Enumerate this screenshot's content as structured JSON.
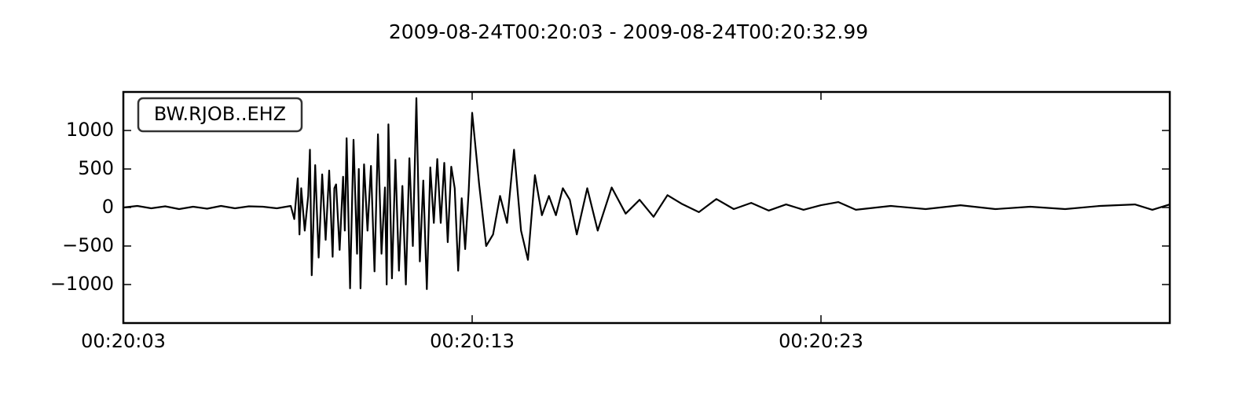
{
  "colors": {
    "background": "#ffffff",
    "trace": "#000000",
    "axes": "#000000",
    "label_box_border": "#333333"
  },
  "chart_data": {
    "type": "line",
    "title": "2009-08-24T00:20:03  -  2009-08-24T00:20:32.99",
    "xlabel": "",
    "ylabel": "",
    "x_unit": "seconds after 00:20:03",
    "xlim": [
      0,
      30
    ],
    "ylim": [
      -1500,
      1500
    ],
    "yticks": [
      1000,
      500,
      0,
      -500,
      -1000
    ],
    "ytick_labels": [
      "1000",
      "500",
      "0",
      "−500",
      "−1000"
    ],
    "xticks": [
      0,
      10,
      20
    ],
    "xtick_labels": [
      "00:20:03",
      "00:20:13",
      "00:20:23"
    ],
    "grid": false,
    "legend_position": "top-left",
    "series": [
      {
        "name": "BW.RJOB..EHZ",
        "color": "#000000",
        "x": [
          0,
          0.4,
          0.8,
          1.2,
          1.6,
          2.0,
          2.4,
          2.8,
          3.2,
          3.6,
          4.0,
          4.4,
          4.8,
          4.9,
          5.0,
          5.05,
          5.1,
          5.2,
          5.3,
          5.35,
          5.4,
          5.5,
          5.6,
          5.7,
          5.8,
          5.9,
          6.0,
          6.05,
          6.1,
          6.2,
          6.3,
          6.35,
          6.4,
          6.5,
          6.6,
          6.7,
          6.75,
          6.8,
          6.9,
          7.0,
          7.1,
          7.2,
          7.3,
          7.4,
          7.5,
          7.55,
          7.6,
          7.7,
          7.8,
          7.9,
          8.0,
          8.1,
          8.2,
          8.3,
          8.4,
          8.5,
          8.6,
          8.7,
          8.8,
          8.9,
          9.0,
          9.1,
          9.2,
          9.3,
          9.4,
          9.5,
          9.6,
          9.7,
          9.8,
          9.9,
          10.0,
          10.2,
          10.4,
          10.6,
          10.8,
          11.0,
          11.2,
          11.4,
          11.6,
          11.8,
          12.0,
          12.2,
          12.4,
          12.6,
          12.8,
          13.0,
          13.3,
          13.6,
          14.0,
          14.4,
          14.8,
          15.2,
          15.6,
          16.0,
          16.5,
          17.0,
          17.5,
          18.0,
          18.5,
          19.0,
          19.5,
          20.0,
          20.5,
          21.0,
          22.0,
          23.0,
          24.0,
          25.0,
          26.0,
          27.0,
          28.0,
          29.0,
          29.5,
          30.0
        ],
        "y": [
          0,
          20,
          -10,
          15,
          -20,
          10,
          -15,
          20,
          -10,
          15,
          10,
          -10,
          20,
          -150,
          380,
          -350,
          250,
          -300,
          150,
          750,
          -880,
          550,
          -650,
          430,
          -420,
          480,
          -640,
          250,
          300,
          -550,
          400,
          -300,
          900,
          -1050,
          880,
          -600,
          500,
          -1050,
          560,
          -300,
          540,
          -830,
          950,
          -600,
          260,
          -1000,
          1080,
          -920,
          620,
          -820,
          280,
          -1000,
          640,
          -500,
          1420,
          -700,
          350,
          -1060,
          520,
          -200,
          630,
          -200,
          580,
          -450,
          530,
          250,
          -820,
          120,
          -540,
          220,
          1230,
          300,
          -500,
          -350,
          150,
          -200,
          750,
          -300,
          -680,
          420,
          -100,
          150,
          -100,
          250,
          100,
          -350,
          250,
          -300,
          260,
          -80,
          100,
          -120,
          160,
          50,
          -60,
          110,
          -20,
          60,
          -40,
          40,
          -30,
          30,
          70,
          -30,
          20,
          -20,
          30,
          -20,
          10,
          -20,
          20,
          40,
          -30,
          40
        ]
      }
    ]
  }
}
